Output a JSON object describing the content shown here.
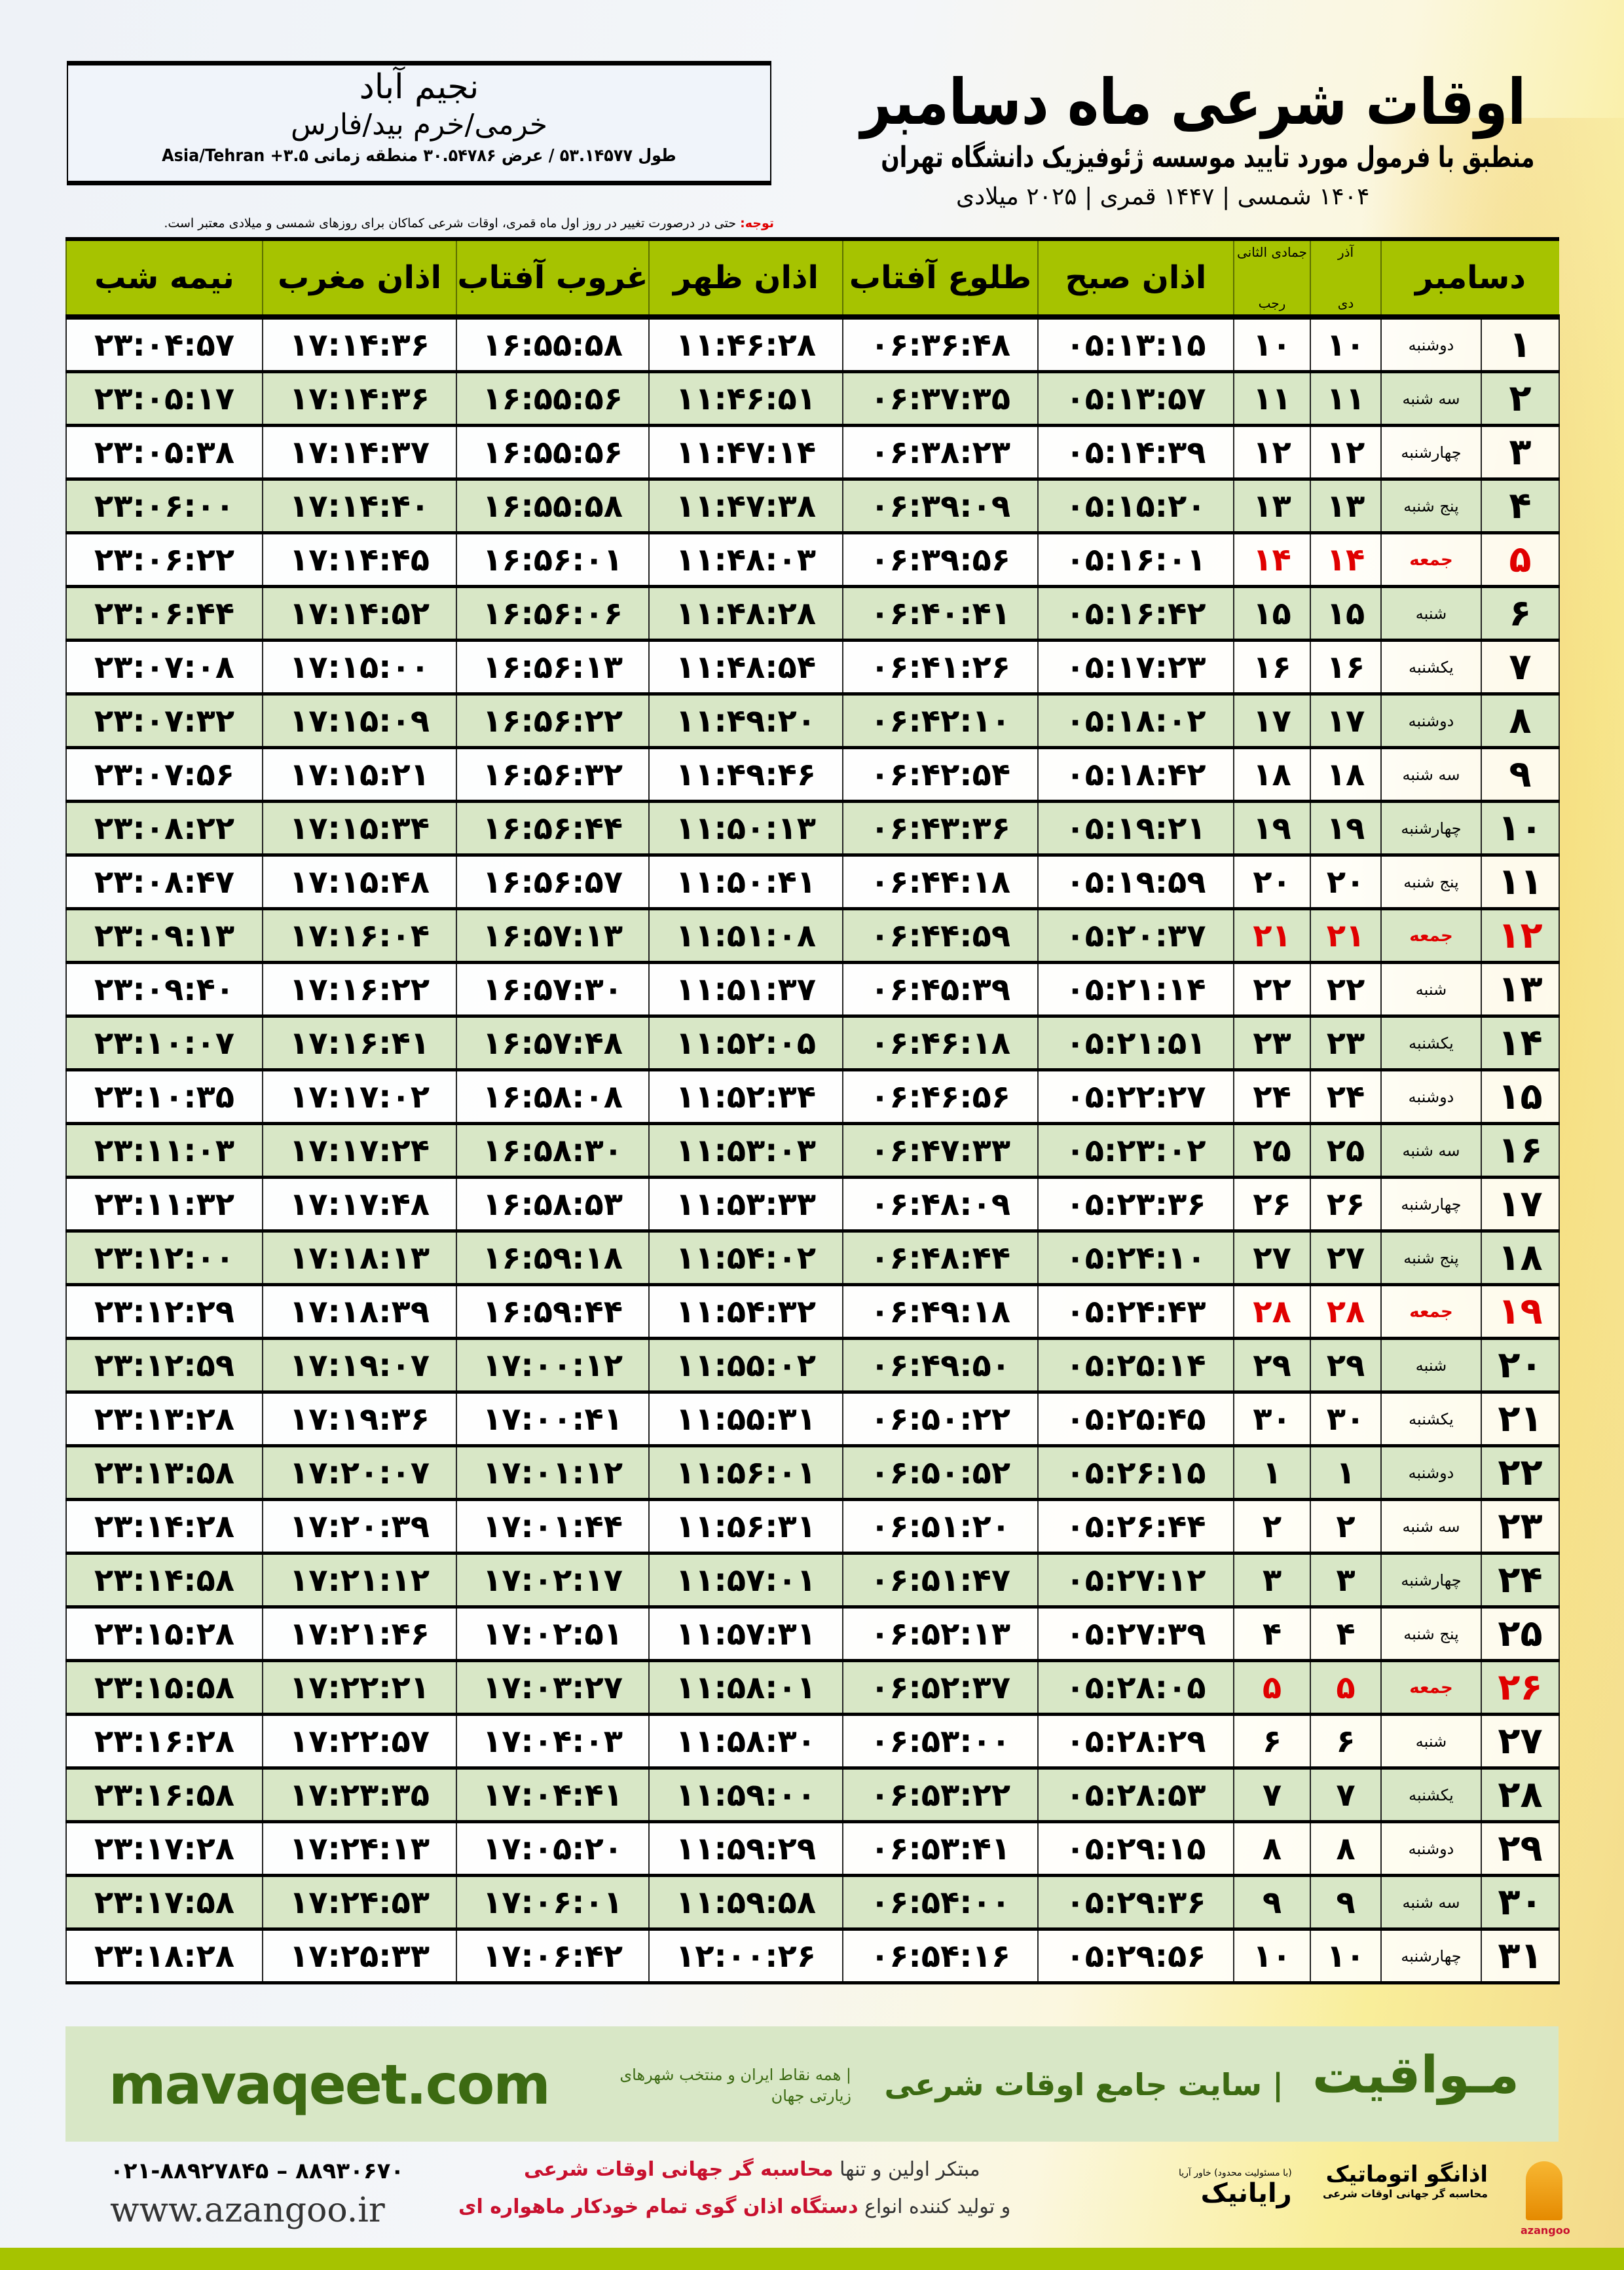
{
  "location": {
    "name": "نجیم آباد",
    "region": "خرمی/خرم بید/فارس",
    "coords": "طول ۵۳.۱۴۵۷۷ / عرض ۳۰.۵۴۷۸۶ منطقه زمانی ۳.۵+ Asia/Tehran"
  },
  "header": {
    "title": "اوقات شرعی ماه دسامبر",
    "subtitle": "منطبق با فرمول مورد تایید موسسه ژئوفیزیک دانشگاه تهران",
    "dateline": "۱۴۰۴ شمسی | ۱۴۴۷ قمری | ۲۰۲۵ میلادی",
    "note_label": "توجه:",
    "note": " حتی در درصورت تغییر در روز اول ماه قمری، اوقات شرعی کماکان برای روزهای شمسی و میلادی معتبر است."
  },
  "table": {
    "columns": {
      "day": "دسامبر",
      "dey_top": "آذر",
      "dey": "دی",
      "rajab_top": "جمادی الثانی",
      "rajab": "رجب",
      "sobh": "اذان صبح",
      "tolu": "طلوع آفتاب",
      "zohr": "اذان ظهر",
      "ghurub": "غروب آفتاب",
      "maghrib": "اذان مغرب",
      "nimeh": "نیمه شب"
    },
    "highlight_color": "#e00000",
    "header_color": "#a6c300",
    "rows": [
      [
        "۱",
        "دوشنبه",
        "۱۰",
        "۱۰",
        "۰۵:۱۳:۱۵",
        "۰۶:۳۶:۴۸",
        "۱۱:۴۶:۲۸",
        "۱۶:۵۵:۵۸",
        "۱۷:۱۴:۳۶",
        "۲۳:۰۴:۵۷"
      ],
      [
        "۲",
        "سه شنبه",
        "۱۱",
        "۱۱",
        "۰۵:۱۳:۵۷",
        "۰۶:۳۷:۳۵",
        "۱۱:۴۶:۵۱",
        "۱۶:۵۵:۵۶",
        "۱۷:۱۴:۳۶",
        "۲۳:۰۵:۱۷"
      ],
      [
        "۳",
        "چهارشنبه",
        "۱۲",
        "۱۲",
        "۰۵:۱۴:۳۹",
        "۰۶:۳۸:۲۳",
        "۱۱:۴۷:۱۴",
        "۱۶:۵۵:۵۶",
        "۱۷:۱۴:۳۷",
        "۲۳:۰۵:۳۸"
      ],
      [
        "۴",
        "پنج شنبه",
        "۱۳",
        "۱۳",
        "۰۵:۱۵:۲۰",
        "۰۶:۳۹:۰۹",
        "۱۱:۴۷:۳۸",
        "۱۶:۵۵:۵۸",
        "۱۷:۱۴:۴۰",
        "۲۳:۰۶:۰۰"
      ],
      [
        "۵",
        "جمعه",
        "۱۴",
        "۱۴",
        "۰۵:۱۶:۰۱",
        "۰۶:۳۹:۵۶",
        "۱۱:۴۸:۰۳",
        "۱۶:۵۶:۰۱",
        "۱۷:۱۴:۴۵",
        "۲۳:۰۶:۲۲"
      ],
      [
        "۶",
        "شنبه",
        "۱۵",
        "۱۵",
        "۰۵:۱۶:۴۲",
        "۰۶:۴۰:۴۱",
        "۱۱:۴۸:۲۸",
        "۱۶:۵۶:۰۶",
        "۱۷:۱۴:۵۲",
        "۲۳:۰۶:۴۴"
      ],
      [
        "۷",
        "یکشنبه",
        "۱۶",
        "۱۶",
        "۰۵:۱۷:۲۳",
        "۰۶:۴۱:۲۶",
        "۱۱:۴۸:۵۴",
        "۱۶:۵۶:۱۳",
        "۱۷:۱۵:۰۰",
        "۲۳:۰۷:۰۸"
      ],
      [
        "۸",
        "دوشنبه",
        "۱۷",
        "۱۷",
        "۰۵:۱۸:۰۲",
        "۰۶:۴۲:۱۰",
        "۱۱:۴۹:۲۰",
        "۱۶:۵۶:۲۲",
        "۱۷:۱۵:۰۹",
        "۲۳:۰۷:۳۲"
      ],
      [
        "۹",
        "سه شنبه",
        "۱۸",
        "۱۸",
        "۰۵:۱۸:۴۲",
        "۰۶:۴۲:۵۴",
        "۱۱:۴۹:۴۶",
        "۱۶:۵۶:۳۲",
        "۱۷:۱۵:۲۱",
        "۲۳:۰۷:۵۶"
      ],
      [
        "۱۰",
        "چهارشنبه",
        "۱۹",
        "۱۹",
        "۰۵:۱۹:۲۱",
        "۰۶:۴۳:۳۶",
        "۱۱:۵۰:۱۳",
        "۱۶:۵۶:۴۴",
        "۱۷:۱۵:۳۴",
        "۲۳:۰۸:۲۲"
      ],
      [
        "۱۱",
        "پنج شنبه",
        "۲۰",
        "۲۰",
        "۰۵:۱۹:۵۹",
        "۰۶:۴۴:۱۸",
        "۱۱:۵۰:۴۱",
        "۱۶:۵۶:۵۷",
        "۱۷:۱۵:۴۸",
        "۲۳:۰۸:۴۷"
      ],
      [
        "۱۲",
        "جمعه",
        "۲۱",
        "۲۱",
        "۰۵:۲۰:۳۷",
        "۰۶:۴۴:۵۹",
        "۱۱:۵۱:۰۸",
        "۱۶:۵۷:۱۳",
        "۱۷:۱۶:۰۴",
        "۲۳:۰۹:۱۳"
      ],
      [
        "۱۳",
        "شنبه",
        "۲۲",
        "۲۲",
        "۰۵:۲۱:۱۴",
        "۰۶:۴۵:۳۹",
        "۱۱:۵۱:۳۷",
        "۱۶:۵۷:۳۰",
        "۱۷:۱۶:۲۲",
        "۲۳:۰۹:۴۰"
      ],
      [
        "۱۴",
        "یکشنبه",
        "۲۳",
        "۲۳",
        "۰۵:۲۱:۵۱",
        "۰۶:۴۶:۱۸",
        "۱۱:۵۲:۰۵",
        "۱۶:۵۷:۴۸",
        "۱۷:۱۶:۴۱",
        "۲۳:۱۰:۰۷"
      ],
      [
        "۱۵",
        "دوشنبه",
        "۲۴",
        "۲۴",
        "۰۵:۲۲:۲۷",
        "۰۶:۴۶:۵۶",
        "۱۱:۵۲:۳۴",
        "۱۶:۵۸:۰۸",
        "۱۷:۱۷:۰۲",
        "۲۳:۱۰:۳۵"
      ],
      [
        "۱۶",
        "سه شنبه",
        "۲۵",
        "۲۵",
        "۰۵:۲۳:۰۲",
        "۰۶:۴۷:۳۳",
        "۱۱:۵۳:۰۳",
        "۱۶:۵۸:۳۰",
        "۱۷:۱۷:۲۴",
        "۲۳:۱۱:۰۳"
      ],
      [
        "۱۷",
        "چهارشنبه",
        "۲۶",
        "۲۶",
        "۰۵:۲۳:۳۶",
        "۰۶:۴۸:۰۹",
        "۱۱:۵۳:۳۳",
        "۱۶:۵۸:۵۳",
        "۱۷:۱۷:۴۸",
        "۲۳:۱۱:۳۲"
      ],
      [
        "۱۸",
        "پنج شنبه",
        "۲۷",
        "۲۷",
        "۰۵:۲۴:۱۰",
        "۰۶:۴۸:۴۴",
        "۱۱:۵۴:۰۲",
        "۱۶:۵۹:۱۸",
        "۱۷:۱۸:۱۳",
        "۲۳:۱۲:۰۰"
      ],
      [
        "۱۹",
        "جمعه",
        "۲۸",
        "۲۸",
        "۰۵:۲۴:۴۳",
        "۰۶:۴۹:۱۸",
        "۱۱:۵۴:۳۲",
        "۱۶:۵۹:۴۴",
        "۱۷:۱۸:۳۹",
        "۲۳:۱۲:۲۹"
      ],
      [
        "۲۰",
        "شنبه",
        "۲۹",
        "۲۹",
        "۰۵:۲۵:۱۴",
        "۰۶:۴۹:۵۰",
        "۱۱:۵۵:۰۲",
        "۱۷:۰۰:۱۲",
        "۱۷:۱۹:۰۷",
        "۲۳:۱۲:۵۹"
      ],
      [
        "۲۱",
        "یکشنبه",
        "۳۰",
        "۳۰",
        "۰۵:۲۵:۴۵",
        "۰۶:۵۰:۲۲",
        "۱۱:۵۵:۳۱",
        "۱۷:۰۰:۴۱",
        "۱۷:۱۹:۳۶",
        "۲۳:۱۳:۲۸"
      ],
      [
        "۲۲",
        "دوشنبه",
        "۱",
        "۱",
        "۰۵:۲۶:۱۵",
        "۰۶:۵۰:۵۲",
        "۱۱:۵۶:۰۱",
        "۱۷:۰۱:۱۲",
        "۱۷:۲۰:۰۷",
        "۲۳:۱۳:۵۸"
      ],
      [
        "۲۳",
        "سه شنبه",
        "۲",
        "۲",
        "۰۵:۲۶:۴۴",
        "۰۶:۵۱:۲۰",
        "۱۱:۵۶:۳۱",
        "۱۷:۰۱:۴۴",
        "۱۷:۲۰:۳۹",
        "۲۳:۱۴:۲۸"
      ],
      [
        "۲۴",
        "چهارشنبه",
        "۳",
        "۳",
        "۰۵:۲۷:۱۲",
        "۰۶:۵۱:۴۷",
        "۱۱:۵۷:۰۱",
        "۱۷:۰۲:۱۷",
        "۱۷:۲۱:۱۲",
        "۲۳:۱۴:۵۸"
      ],
      [
        "۲۵",
        "پنج شنبه",
        "۴",
        "۴",
        "۰۵:۲۷:۳۹",
        "۰۶:۵۲:۱۳",
        "۱۱:۵۷:۳۱",
        "۱۷:۰۲:۵۱",
        "۱۷:۲۱:۴۶",
        "۲۳:۱۵:۲۸"
      ],
      [
        "۲۶",
        "جمعه",
        "۵",
        "۵",
        "۰۵:۲۸:۰۵",
        "۰۶:۵۲:۳۷",
        "۱۱:۵۸:۰۱",
        "۱۷:۰۳:۲۷",
        "۱۷:۲۲:۲۱",
        "۲۳:۱۵:۵۸"
      ],
      [
        "۲۷",
        "شنبه",
        "۶",
        "۶",
        "۰۵:۲۸:۲۹",
        "۰۶:۵۳:۰۰",
        "۱۱:۵۸:۳۰",
        "۱۷:۰۴:۰۳",
        "۱۷:۲۲:۵۷",
        "۲۳:۱۶:۲۸"
      ],
      [
        "۲۸",
        "یکشنبه",
        "۷",
        "۷",
        "۰۵:۲۸:۵۳",
        "۰۶:۵۳:۲۲",
        "۱۱:۵۹:۰۰",
        "۱۷:۰۴:۴۱",
        "۱۷:۲۳:۳۵",
        "۲۳:۱۶:۵۸"
      ],
      [
        "۲۹",
        "دوشنبه",
        "۸",
        "۸",
        "۰۵:۲۹:۱۵",
        "۰۶:۵۳:۴۱",
        "۱۱:۵۹:۲۹",
        "۱۷:۰۵:۲۰",
        "۱۷:۲۴:۱۳",
        "۲۳:۱۷:۲۸"
      ],
      [
        "۳۰",
        "سه شنبه",
        "۹",
        "۹",
        "۰۵:۲۹:۳۶",
        "۰۶:۵۴:۰۰",
        "۱۱:۵۹:۵۸",
        "۱۷:۰۶:۰۱",
        "۱۷:۲۴:۵۳",
        "۲۳:۱۷:۵۸"
      ],
      [
        "۳۱",
        "چهارشنبه",
        "۱۰",
        "۱۰",
        "۰۵:۲۹:۵۶",
        "۰۶:۵۴:۱۶",
        "۱۲:۰۰:۲۶",
        "۱۷:۰۶:۴۲",
        "۱۷:۲۵:۳۳",
        "۲۳:۱۸:۲۸"
      ]
    ]
  },
  "banner": {
    "logo": "مـواقیت",
    "title": "| سایت جامع اوقات شرعی",
    "sub": "| همه نقاط ایران و منتخب شهرهای زیارتی جهان",
    "url": "mavaqeet.com",
    "color": "#3c6a12",
    "bg": "#d8e7c6"
  },
  "footer": {
    "phone": "۰۲۱-۸۸۹۲۷۸۴۵ – ۸۸۹۳۰۶۷۰",
    "web": "www.azangoo.ir",
    "line1_a": "مبتکر اولین و تنها ",
    "line1_b": "محاسبه گر جهانی اوقات شرعی",
    "line2_a": "و تولید کننده انواع ",
    "line2_b": "دستگاه اذان گوی تمام خودکار ماهواره ای",
    "rayanik": "رایانیک",
    "rayanik_small": "(با مسئولیت محدود) خاور آریا",
    "azangoo": "اذانگو اتوماتیک",
    "azangoo_sub": "محاسبه گر جهانی اوقات شرعی",
    "azangoo_en": "azangoo"
  }
}
